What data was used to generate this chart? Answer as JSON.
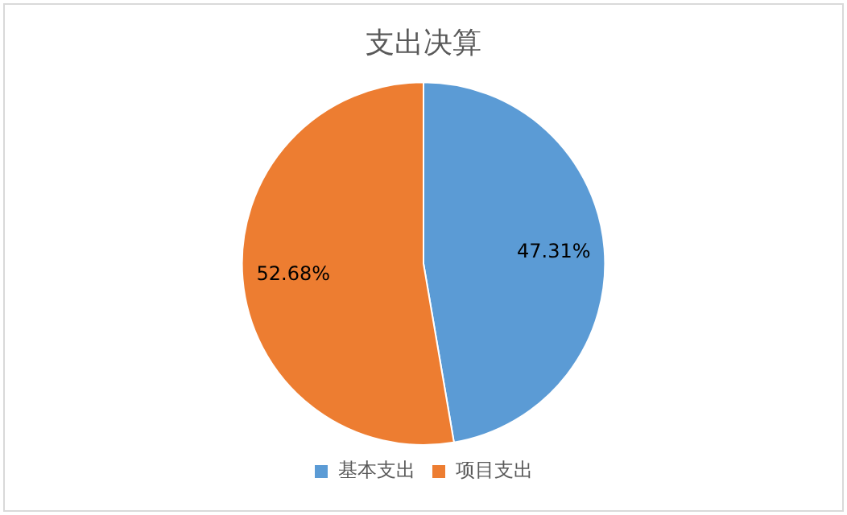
{
  "chart_data": {
    "type": "pie",
    "title": "支出决算",
    "categories": [
      "基本支出",
      "项目支出"
    ],
    "values": [
      47.31,
      52.68
    ],
    "colors": [
      "#5b9bd5",
      "#ed7d31"
    ],
    "value_labels": [
      "47.31%",
      "52.68%"
    ],
    "legend": "bottom"
  }
}
